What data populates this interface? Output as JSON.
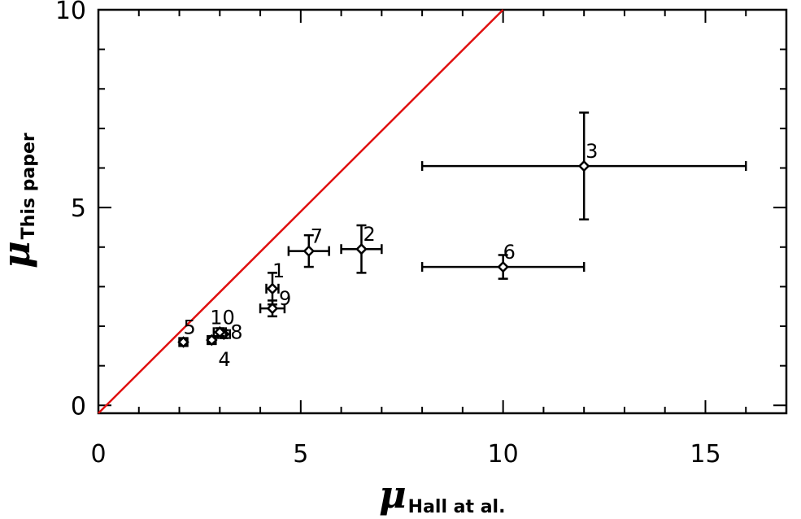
{
  "chart_data": {
    "type": "scatter",
    "title": "",
    "xlabel": {
      "symbol": "μ",
      "subscript": "Hall at al."
    },
    "ylabel": {
      "symbol": "μ",
      "subscript": "This paper"
    },
    "xlim": [
      0,
      17
    ],
    "ylim": [
      -0.2,
      10
    ],
    "x_ticks": [
      0,
      5,
      10,
      15
    ],
    "y_ticks": [
      0,
      5,
      10
    ],
    "x_minor_step": 1,
    "y_minor_step": 1,
    "grid": false,
    "points": [
      {
        "label": "1",
        "x": 4.3,
        "y": 2.95,
        "xerr": 0.15,
        "yerr": 0.4
      },
      {
        "label": "2",
        "x": 6.5,
        "y": 3.95,
        "xerr": 0.5,
        "yerr": 0.6
      },
      {
        "label": "3",
        "x": 12.0,
        "y": 6.05,
        "xerr": 4.0,
        "yerr": 1.35
      },
      {
        "label": "4",
        "x": 2.8,
        "y": 1.65,
        "xerr": 0.1,
        "yerr": 0.1
      },
      {
        "label": "5",
        "x": 2.1,
        "y": 1.6,
        "xerr": 0.1,
        "yerr": 0.1
      },
      {
        "label": "6",
        "x": 10.0,
        "y": 3.5,
        "xerr": 2.0,
        "yerr": 0.3
      },
      {
        "label": "7",
        "x": 5.2,
        "y": 3.9,
        "xerr": 0.5,
        "yerr": 0.4
      },
      {
        "label": "8",
        "x": 3.1,
        "y": 1.8,
        "xerr": 0.15,
        "yerr": 0.1
      },
      {
        "label": "9",
        "x": 4.3,
        "y": 2.45,
        "xerr": 0.3,
        "yerr": 0.2
      },
      {
        "label": "10",
        "x": 3.0,
        "y": 1.85,
        "xerr": 0.15,
        "yerr": 0.1
      }
    ],
    "reference_line": {
      "from": [
        0,
        -0.2
      ],
      "to": [
        10,
        10
      ],
      "color": "#e01010"
    },
    "marker_color": "#000000"
  }
}
